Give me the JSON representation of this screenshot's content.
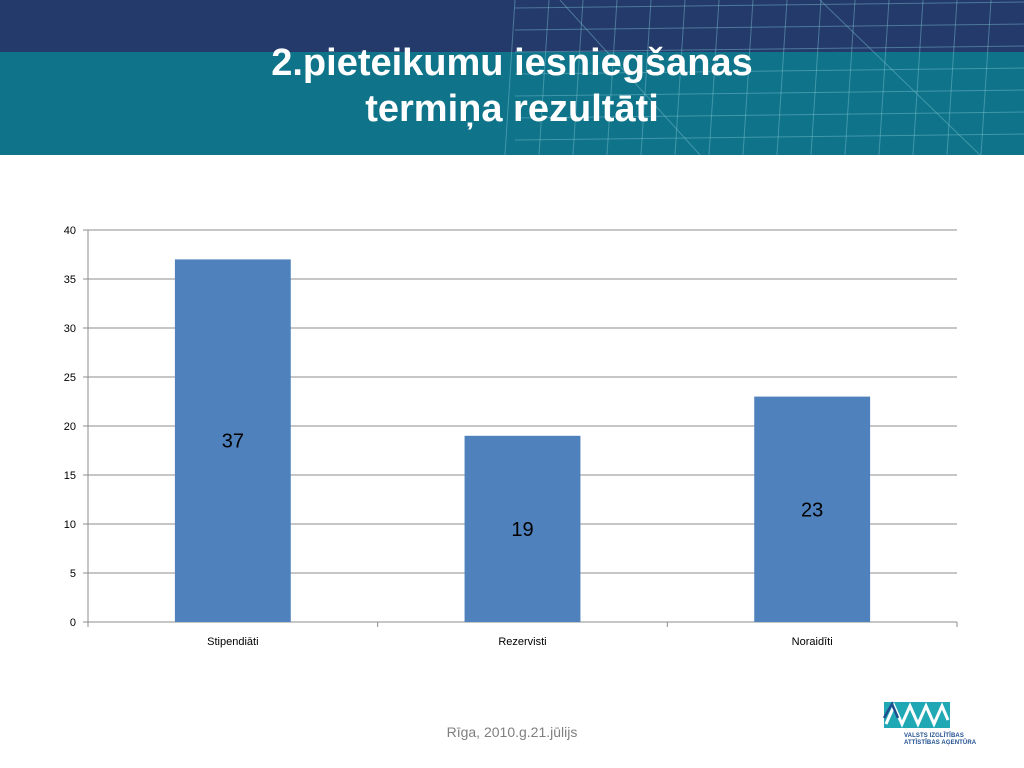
{
  "slide": {
    "title_line1": "2.pieteikumu iesniegšanas",
    "title_line2": "termiņa rezultāti",
    "footer": "Rīga, 2010.g.21.jūlijs"
  },
  "logo": {
    "line1": "VALSTS IZGLĪTĪBAS",
    "line2": "ATTĪSTĪBAS AĢENTŪRA"
  },
  "colors": {
    "bar": "#4f81bd",
    "header_top": "#243a6b",
    "header_band": "#0f7389",
    "logo_teal": "#21a8b5"
  },
  "chart_data": {
    "type": "bar",
    "categories": [
      "Stipendiāti",
      "Rezervisti",
      "Noraidīti"
    ],
    "values": [
      37,
      19,
      23
    ],
    "data_labels": [
      "37",
      "19",
      "23"
    ],
    "yticks": [
      "0",
      "5",
      "10",
      "15",
      "20",
      "25",
      "30",
      "35",
      "40"
    ],
    "ylim": [
      0,
      40
    ],
    "grid": true,
    "legend": "none",
    "title": "",
    "xlabel": "",
    "ylabel": ""
  }
}
